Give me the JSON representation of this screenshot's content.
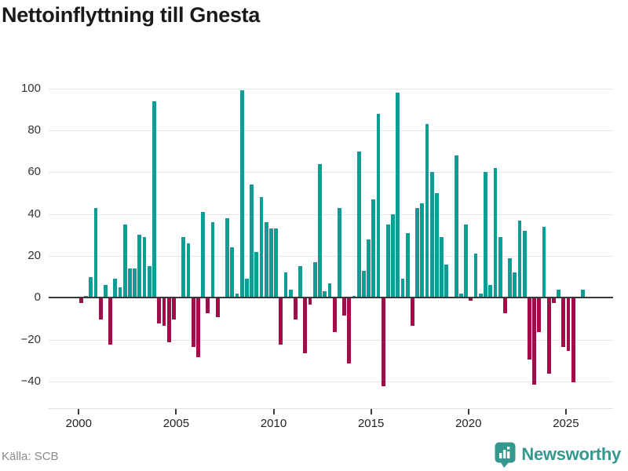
{
  "title": "Nettoinflyttning till Gnesta",
  "footer": {
    "source_label": "Källa: SCB",
    "brand_name": "Newsworthy"
  },
  "colors": {
    "positive_bar": "#0d9d95",
    "negative_bar": "#a30b49",
    "brand_teal": "#35988f",
    "gridline": "#e4e4e4",
    "axis": "#383838"
  },
  "chart_data": {
    "type": "bar",
    "title": "Nettoinflyttning till Gnesta",
    "frequency": "quarterly",
    "start_year": 2000,
    "x_tick_labels": [
      "2000",
      "2005",
      "2010",
      "2015",
      "2020",
      "2025"
    ],
    "y_tick_labels": [
      "100",
      "80",
      "60",
      "40",
      "20",
      "0",
      "−20",
      "−40"
    ],
    "y_tick_values": [
      100,
      80,
      60,
      40,
      20,
      0,
      -20,
      -40
    ],
    "ylim": [
      -53,
      110
    ],
    "grid": "horizontal",
    "legend": "none",
    "series": [
      {
        "name": "Nettoinflyttning per kvartal",
        "values_by_year": {
          "2000": [
            -2,
            1,
            10,
            43
          ],
          "2001": [
            -10,
            6,
            -22,
            9
          ],
          "2002": [
            5,
            35,
            14,
            14
          ],
          "2003": [
            30,
            29,
            15,
            94
          ],
          "2004": [
            -12,
            -13,
            -21,
            -10
          ],
          "2005": [
            0,
            29,
            26,
            -23
          ],
          "2006": [
            -28,
            41,
            -7,
            36
          ],
          "2007": [
            -9,
            0,
            38,
            24
          ],
          "2008": [
            2,
            99,
            9,
            54
          ],
          "2009": [
            22,
            48,
            36,
            33
          ],
          "2010": [
            33,
            -22,
            12,
            4
          ],
          "2011": [
            -10,
            15,
            -26,
            -3
          ],
          "2012": [
            17,
            64,
            3,
            7
          ],
          "2013": [
            -16,
            43,
            -8,
            -31
          ],
          "2014": [
            1,
            70,
            13,
            28
          ],
          "2015": [
            47,
            88,
            -42,
            35
          ],
          "2016": [
            40,
            98,
            9,
            31
          ],
          "2017": [
            -13,
            43,
            45,
            83
          ],
          "2018": [
            60,
            50,
            29,
            16
          ],
          "2019": [
            0,
            68,
            2,
            35
          ],
          "2020": [
            -1,
            21,
            2,
            60
          ],
          "2021": [
            6,
            62,
            29,
            -7
          ],
          "2022": [
            19,
            12,
            37,
            32
          ],
          "2023": [
            -29,
            -41,
            -16,
            34
          ],
          "2024": [
            -36,
            -2,
            4,
            -23
          ],
          "2025": [
            -25,
            -40,
            0,
            4
          ]
        }
      }
    ]
  }
}
